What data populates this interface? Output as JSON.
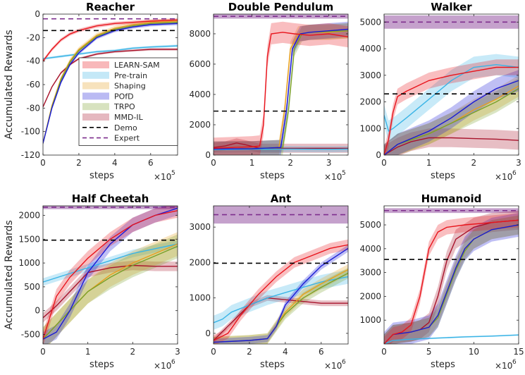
{
  "figure": {
    "ylabel": "Accumulated Rewards",
    "xlabel": "steps"
  },
  "legend": [
    {
      "name": "LEARN-SAM",
      "color": "#e8141c",
      "style": "band"
    },
    {
      "name": "Pre-train",
      "color": "#3ab4e6",
      "style": "band"
    },
    {
      "name": "Shaping",
      "color": "#e6a020",
      "style": "band"
    },
    {
      "name": "POfD",
      "color": "#1a1ad6",
      "style": "band"
    },
    {
      "name": "TRPO",
      "color": "#7aa02a",
      "style": "band"
    },
    {
      "name": "MMD-IL",
      "color": "#a8142c",
      "style": "band"
    },
    {
      "name": "Demo",
      "color": "#000000",
      "style": "dash"
    },
    {
      "name": "Expert",
      "color": "#7e2f8e",
      "style": "dash"
    }
  ],
  "chart_data": [
    {
      "type": "line",
      "title": "Reacher",
      "xlabel": "steps",
      "ylabel": "Accumulated Rewards",
      "x_multiplier": "5",
      "xlim": [
        0,
        7.5
      ],
      "ylim": [
        -120,
        0
      ],
      "xticks": [
        0,
        2,
        4,
        6
      ],
      "yticks": [
        -120,
        -100,
        -80,
        -60,
        -40,
        -20,
        0
      ],
      "demo": -14,
      "expert": -4,
      "expert_band": 0,
      "series": [
        {
          "name": "LEARN-SAM",
          "x": [
            0,
            0.5,
            1,
            1.5,
            2,
            3,
            4,
            5,
            6,
            7.5
          ],
          "y": [
            -40,
            -30,
            -22,
            -17,
            -14,
            -10,
            -8,
            -7,
            -6,
            -5
          ],
          "band": 1.5
        },
        {
          "name": "Pre-train",
          "x": [
            0,
            1,
            2,
            3,
            4,
            5,
            6,
            7.5
          ],
          "y": [
            -38,
            -36,
            -34,
            -32,
            -31,
            -29,
            -28,
            -27
          ],
          "band": 1
        },
        {
          "name": "Shaping",
          "x": [
            0,
            0.5,
            1,
            1.5,
            2,
            3,
            4,
            5,
            6,
            7.5
          ],
          "y": [
            -110,
            -78,
            -55,
            -40,
            -30,
            -18,
            -12,
            -9,
            -7,
            -6
          ],
          "band": 2
        },
        {
          "name": "POfD",
          "x": [
            0,
            0.5,
            1,
            1.5,
            2,
            3,
            4,
            5,
            6,
            7.5
          ],
          "y": [
            -110,
            -80,
            -58,
            -43,
            -33,
            -20,
            -14,
            -11,
            -9,
            -8
          ],
          "band": 1.5
        },
        {
          "name": "TRPO",
          "x": [
            0,
            0.5,
            1,
            1.5,
            2,
            3,
            4,
            5,
            6,
            7.5
          ],
          "y": [
            -110,
            -79,
            -56,
            -41,
            -31,
            -19,
            -13,
            -10,
            -8,
            -7
          ],
          "band": 1.5
        },
        {
          "name": "MMD-IL",
          "x": [
            0,
            0.5,
            1,
            1.5,
            2,
            3,
            4,
            5,
            6,
            7.5
          ],
          "y": [
            -79,
            -62,
            -50,
            -43,
            -38,
            -34,
            -32,
            -31,
            -30,
            -30
          ],
          "band": 1
        }
      ]
    },
    {
      "type": "line",
      "title": "Double Pendulum",
      "xlabel": "steps",
      "ylabel": "",
      "x_multiplier": "5",
      "xlim": [
        0,
        3.5
      ],
      "ylim": [
        0,
        9300
      ],
      "xticks": [
        0,
        1,
        2,
        3
      ],
      "yticks": [
        0,
        2000,
        4000,
        6000,
        8000
      ],
      "demo": 2900,
      "expert": 9150,
      "expert_band": 150,
      "series": [
        {
          "name": "LEARN-SAM",
          "x": [
            0,
            0.5,
            1,
            1.2,
            1.3,
            1.4,
            1.5,
            1.8,
            2.1,
            2.5,
            3,
            3.5
          ],
          "y": [
            450,
            500,
            550,
            600,
            2000,
            6500,
            8000,
            8100,
            8000,
            7900,
            8000,
            7800
          ],
          "band": 700
        },
        {
          "name": "Pre-train",
          "x": [
            0,
            1,
            2,
            3,
            3.5
          ],
          "y": [
            350,
            380,
            400,
            380,
            400
          ],
          "band": 200
        },
        {
          "name": "Shaping",
          "x": [
            0,
            1,
            1.7,
            1.85,
            2,
            2.2,
            2.5,
            3,
            3.5
          ],
          "y": [
            400,
            420,
            500,
            3000,
            7000,
            8000,
            8100,
            8100,
            8200
          ],
          "band": 500
        },
        {
          "name": "POfD",
          "x": [
            0,
            1,
            1.75,
            1.9,
            2.05,
            2.25,
            2.5,
            3,
            3.5
          ],
          "y": [
            400,
            420,
            500,
            3000,
            7000,
            8000,
            8100,
            8200,
            8300
          ],
          "band": 500
        },
        {
          "name": "TRPO",
          "x": [
            0,
            1,
            1.8,
            1.95,
            2.1,
            2.3,
            2.5,
            3,
            3.5
          ],
          "y": [
            400,
            420,
            500,
            3000,
            7000,
            8000,
            8100,
            8150,
            8200
          ],
          "band": 500
        },
        {
          "name": "MMD-IL",
          "x": [
            0,
            0.3,
            0.6,
            0.8,
            1.2,
            2,
            3,
            3.5
          ],
          "y": [
            500,
            600,
            800,
            700,
            450,
            450,
            450,
            450
          ],
          "band": 300
        }
      ]
    },
    {
      "type": "line",
      "title": "Walker",
      "xlabel": "steps",
      "ylabel": "",
      "x_multiplier": "6",
      "xlim": [
        0,
        3
      ],
      "ylim": [
        0,
        5300
      ],
      "xticks": [
        0,
        1,
        2,
        3
      ],
      "yticks": [
        0,
        1000,
        2000,
        3000,
        4000,
        5000
      ],
      "demo": 2300,
      "expert": 5000,
      "expert_band": 250,
      "series": [
        {
          "name": "LEARN-SAM",
          "x": [
            0,
            0.1,
            0.2,
            0.3,
            0.5,
            1,
            1.5,
            2,
            2.5,
            3
          ],
          "y": [
            0,
            600,
            1600,
            2200,
            2400,
            2800,
            3000,
            3150,
            3300,
            3300
          ],
          "band": 300
        },
        {
          "name": "Pre-train",
          "x": [
            0,
            0.1,
            0.2,
            0.5,
            1,
            1.5,
            2,
            2.5,
            3
          ],
          "y": [
            1500,
            900,
            1000,
            1400,
            2100,
            2800,
            3300,
            3400,
            3300
          ],
          "band": 400
        },
        {
          "name": "Shaping",
          "x": [
            0,
            0.3,
            1,
            1.5,
            2,
            2.5,
            3
          ],
          "y": [
            0,
            400,
            800,
            1200,
            1700,
            2100,
            2600
          ],
          "band": 400
        },
        {
          "name": "POfD",
          "x": [
            0,
            0.3,
            1,
            1.5,
            2,
            2.5,
            3
          ],
          "y": [
            0,
            400,
            900,
            1400,
            2000,
            2500,
            2800
          ],
          "band": 400
        },
        {
          "name": "TRPO",
          "x": [
            0,
            0.3,
            1,
            1.5,
            2,
            2.5,
            3
          ],
          "y": [
            0,
            400,
            800,
            1200,
            1600,
            2000,
            2500
          ],
          "band": 400
        },
        {
          "name": "MMD-IL",
          "x": [
            0,
            0.3,
            0.6,
            1,
            1.5,
            2,
            2.5,
            3
          ],
          "y": [
            0,
            300,
            500,
            650,
            650,
            620,
            600,
            550
          ],
          "band": 350
        }
      ]
    },
    {
      "type": "line",
      "title": "Half Cheetah",
      "xlabel": "steps",
      "ylabel": "Accumulated Rewards",
      "x_multiplier": "6",
      "xlim": [
        0,
        3
      ],
      "ylim": [
        -700,
        2200
      ],
      "xticks": [
        0,
        1,
        2,
        3
      ],
      "yticks": [
        -500,
        0,
        500,
        1000,
        1500,
        2000
      ],
      "demo": 1480,
      "expert": 2170,
      "expert_band": 40,
      "series": [
        {
          "name": "LEARN-SAM",
          "x": [
            0,
            0.3,
            0.6,
            1,
            1.5,
            2,
            2.5,
            3
          ],
          "y": [
            -600,
            300,
            700,
            1100,
            1500,
            1800,
            2000,
            2100
          ],
          "band": 150
        },
        {
          "name": "Pre-train",
          "x": [
            0,
            0.5,
            1,
            1.5,
            2,
            2.5,
            3
          ],
          "y": [
            600,
            750,
            900,
            1050,
            1200,
            1300,
            1400
          ],
          "band": 80
        },
        {
          "name": "Shaping",
          "x": [
            0,
            0.5,
            1,
            1.5,
            2,
            2.5,
            3
          ],
          "y": [
            -600,
            -100,
            400,
            750,
            1000,
            1200,
            1400
          ],
          "band": 250
        },
        {
          "name": "POfD",
          "x": [
            0,
            0.3,
            0.6,
            1,
            1.5,
            2,
            2.5,
            3
          ],
          "y": [
            -600,
            -450,
            0,
            800,
            1400,
            1800,
            2000,
            2150
          ],
          "band": 150
        },
        {
          "name": "TRPO",
          "x": [
            0,
            0.5,
            1,
            1.5,
            2,
            2.5,
            3
          ],
          "y": [
            -600,
            -100,
            400,
            700,
            950,
            1150,
            1350
          ],
          "band": 250
        },
        {
          "name": "MMD-IL",
          "x": [
            0,
            0.3,
            0.7,
            1,
            1.5,
            2,
            2.5,
            3
          ],
          "y": [
            -150,
            100,
            500,
            800,
            900,
            950,
            930,
            930
          ],
          "band": 100
        }
      ]
    },
    {
      "type": "line",
      "title": "Ant",
      "xlabel": "steps",
      "ylabel": "",
      "x_multiplier": "6",
      "xlim": [
        0,
        7.5
      ],
      "ylim": [
        -300,
        3600
      ],
      "xticks": [
        0,
        2,
        4,
        6
      ],
      "yticks": [
        0,
        1000,
        2000,
        3000
      ],
      "demo": 1980,
      "expert": 3350,
      "expert_band": 250,
      "series": [
        {
          "name": "LEARN-SAM",
          "x": [
            0,
            0.8,
            1.5,
            2.5,
            3.5,
            4.5,
            5.5,
            6.5,
            7.5
          ],
          "y": [
            -200,
            0,
            500,
            1100,
            1600,
            2000,
            2200,
            2400,
            2500
          ],
          "band": 150
        },
        {
          "name": "Pre-train",
          "x": [
            0,
            0.5,
            1,
            2,
            3,
            4,
            5,
            6,
            7.5
          ],
          "y": [
            300,
            400,
            600,
            800,
            1000,
            1150,
            1300,
            1450,
            1600
          ],
          "band": 200
        },
        {
          "name": "Shaping",
          "x": [
            0,
            2,
            3,
            4,
            5,
            6,
            7.5
          ],
          "y": [
            -250,
            -200,
            -150,
            600,
            1100,
            1400,
            1800
          ],
          "band": 150
        },
        {
          "name": "POfD",
          "x": [
            0,
            2,
            3,
            3.5,
            4,
            5,
            6,
            7.5
          ],
          "y": [
            -250,
            -200,
            -150,
            200,
            800,
            1400,
            1900,
            2400
          ],
          "band": 100
        },
        {
          "name": "TRPO",
          "x": [
            0,
            2,
            3,
            4,
            5,
            6,
            7.5
          ],
          "y": [
            -250,
            -200,
            -150,
            550,
            1000,
            1300,
            1700
          ],
          "band": 150
        },
        {
          "name": "MMD-IL",
          "x": [
            0,
            1,
            2,
            3,
            4,
            5,
            6,
            7.5
          ],
          "y": [
            -200,
            300,
            800,
            1000,
            950,
            900,
            850,
            850
          ],
          "band": 80
        }
      ]
    },
    {
      "type": "line",
      "title": "Humanoid",
      "xlabel": "steps",
      "ylabel": "",
      "x_multiplier": "6",
      "xlim": [
        0,
        15
      ],
      "ylim": [
        0,
        5800
      ],
      "xticks": [
        0,
        5,
        10,
        15
      ],
      "yticks": [
        1000,
        2000,
        3000,
        4000,
        5000
      ],
      "demo": 3550,
      "expert": 5600,
      "expert_band": 100,
      "series": [
        {
          "name": "LEARN-SAM",
          "x": [
            0,
            1,
            2,
            3,
            4,
            5,
            6,
            7,
            9,
            12,
            15
          ],
          "y": [
            0,
            400,
            500,
            800,
            2000,
            4000,
            4700,
            4900,
            5000,
            5100,
            5200
          ],
          "band": 300
        },
        {
          "name": "Pre-train",
          "x": [
            0,
            1,
            3,
            6,
            9,
            12,
            15
          ],
          "y": [
            0,
            150,
            200,
            250,
            300,
            330,
            380
          ],
          "band": 30
        },
        {
          "name": "Shaping",
          "x": [
            0,
            1,
            3,
            5,
            6,
            7,
            8,
            9,
            10,
            12,
            15
          ],
          "y": [
            0,
            400,
            500,
            700,
            1200,
            2200,
            3200,
            4000,
            4400,
            4800,
            5000
          ],
          "band": 400
        },
        {
          "name": "POfD",
          "x": [
            0,
            1,
            3,
            5,
            6,
            7,
            8,
            9,
            10,
            12,
            15
          ],
          "y": [
            0,
            400,
            500,
            700,
            1200,
            2200,
            3200,
            4000,
            4400,
            4800,
            5000
          ],
          "band": 500
        },
        {
          "name": "TRPO",
          "x": [
            0,
            1,
            3,
            5,
            6,
            7,
            8,
            9,
            10,
            12,
            15
          ],
          "y": [
            0,
            400,
            500,
            700,
            1100,
            2100,
            3100,
            3900,
            4400,
            4800,
            5000
          ],
          "band": 400
        },
        {
          "name": "MMD-IL",
          "x": [
            0,
            1,
            3,
            4,
            5,
            6,
            7,
            8,
            10,
            12,
            15
          ],
          "y": [
            0,
            400,
            500,
            600,
            900,
            2000,
            3500,
            4400,
            4900,
            5100,
            5200
          ],
          "band": 400
        }
      ]
    }
  ]
}
